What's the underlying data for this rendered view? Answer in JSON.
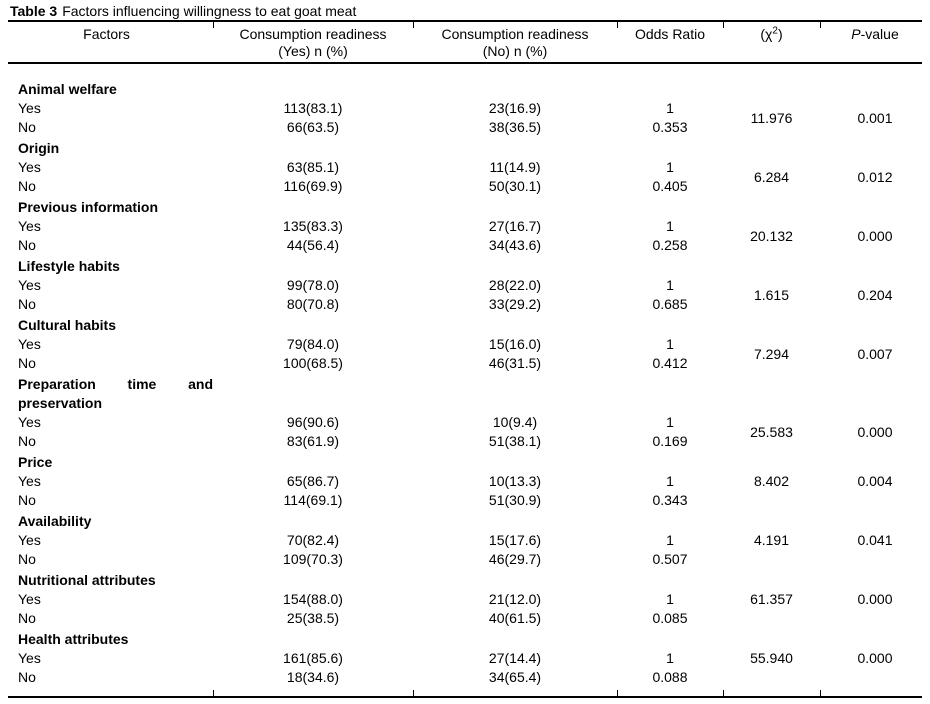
{
  "colors": {
    "background": "#ffffff",
    "text": "#000000",
    "rule": "#000000"
  },
  "caption": {
    "label": "Table 3",
    "text": "Factors influencing willingness to eat goat meat"
  },
  "header": {
    "factors": "Factors",
    "yes_line1": "Consumption readiness",
    "yes_line2": "(Yes) n (%)",
    "no_line1": "Consumption readiness",
    "no_line2": "(No) n (%)",
    "odds_ratio": "Odds Ratio",
    "chi_pre": "(χ",
    "chi_sup": "2",
    "chi_post": ")",
    "p_italic": "P",
    "p_rest": "-value"
  },
  "table": {
    "columns": [
      "Factors",
      "Consumption readiness (Yes) n (%)",
      "Consumption readiness (No) n (%)",
      "Odds Ratio",
      "(χ2)",
      "P-value"
    ],
    "groups": [
      {
        "factor": "Animal welfare",
        "chi_sq": "11.976",
        "p_value": "0.001",
        "stat_align": "center",
        "rows": [
          {
            "level": "Yes",
            "yes": "113(83.1)",
            "no": "23(16.9)",
            "odds": "1"
          },
          {
            "level": "No",
            "yes": "66(63.5)",
            "no": "38(36.5)",
            "odds": "0.353"
          }
        ]
      },
      {
        "factor": "Origin",
        "chi_sq": "6.284",
        "p_value": "0.012",
        "stat_align": "center",
        "rows": [
          {
            "level": "Yes",
            "yes": "63(85.1)",
            "no": "11(14.9)",
            "odds": "1"
          },
          {
            "level": "No",
            "yes": "116(69.9)",
            "no": "50(30.1)",
            "odds": "0.405"
          }
        ]
      },
      {
        "factor": "Previous information",
        "chi_sq": "20.132",
        "p_value": "0.000",
        "stat_align": "center",
        "rows": [
          {
            "level": "Yes",
            "yes": "135(83.3)",
            "no": "27(16.7)",
            "odds": "1"
          },
          {
            "level": "No",
            "yes": "44(56.4)",
            "no": "34(43.6)",
            "odds": "0.258"
          }
        ]
      },
      {
        "factor": "Lifestyle habits",
        "chi_sq": "1.615",
        "p_value": "0.204",
        "stat_align": "center",
        "rows": [
          {
            "level": "Yes",
            "yes": "99(78.0)",
            "no": "28(22.0)",
            "odds": "1"
          },
          {
            "level": "No",
            "yes": "80(70.8)",
            "no": "33(29.2)",
            "odds": "0.685"
          }
        ]
      },
      {
        "factor": "Cultural habits",
        "chi_sq": "7.294",
        "p_value": "0.007",
        "stat_align": "center",
        "rows": [
          {
            "level": "Yes",
            "yes": "79(84.0)",
            "no": "15(16.0)",
            "odds": "1"
          },
          {
            "level": "No",
            "yes": "100(68.5)",
            "no": "46(31.5)",
            "odds": "0.412"
          }
        ]
      },
      {
        "factor": "Preparation time and preservation",
        "chi_sq": "25.583",
        "p_value": "0.000",
        "stat_align": "center",
        "rows": [
          {
            "level": "Yes",
            "yes": "96(90.6)",
            "no": "10(9.4)",
            "odds": "1"
          },
          {
            "level": "No",
            "yes": "83(61.9)",
            "no": "51(38.1)",
            "odds": "0.169"
          }
        ]
      },
      {
        "factor": "Price",
        "chi_sq": "8.402",
        "p_value": "0.004",
        "stat_align": "top",
        "rows": [
          {
            "level": "Yes",
            "yes": "65(86.7)",
            "no": "10(13.3)",
            "odds": "1"
          },
          {
            "level": "No",
            "yes": "114(69.1)",
            "no": "51(30.9)",
            "odds": "0.343"
          }
        ]
      },
      {
        "factor": "Availability",
        "chi_sq": "4.191",
        "p_value": "0.041",
        "stat_align": "top",
        "rows": [
          {
            "level": "Yes",
            "yes": "70(82.4)",
            "no": "15(17.6)",
            "odds": "1"
          },
          {
            "level": "No",
            "yes": "109(70.3)",
            "no": "46(29.7)",
            "odds": "0.507"
          }
        ]
      },
      {
        "factor": "Nutritional attributes",
        "chi_sq": "61.357",
        "p_value": "0.000",
        "stat_align": "top",
        "rows": [
          {
            "level": "Yes",
            "yes": "154(88.0)",
            "no": "21(12.0)",
            "odds": "1"
          },
          {
            "level": "No",
            "yes": "25(38.5)",
            "no": "40(61.5)",
            "odds": "0.085"
          }
        ]
      },
      {
        "factor": "Health attributes",
        "chi_sq": "55.940",
        "p_value": "0.000",
        "stat_align": "top",
        "rows": [
          {
            "level": "Yes",
            "yes": "161(85.6)",
            "no": "27(14.4)",
            "odds": "1"
          },
          {
            "level": "No",
            "yes": "18(34.6)",
            "no": "34(65.4)",
            "odds": "0.088"
          }
        ]
      }
    ]
  }
}
